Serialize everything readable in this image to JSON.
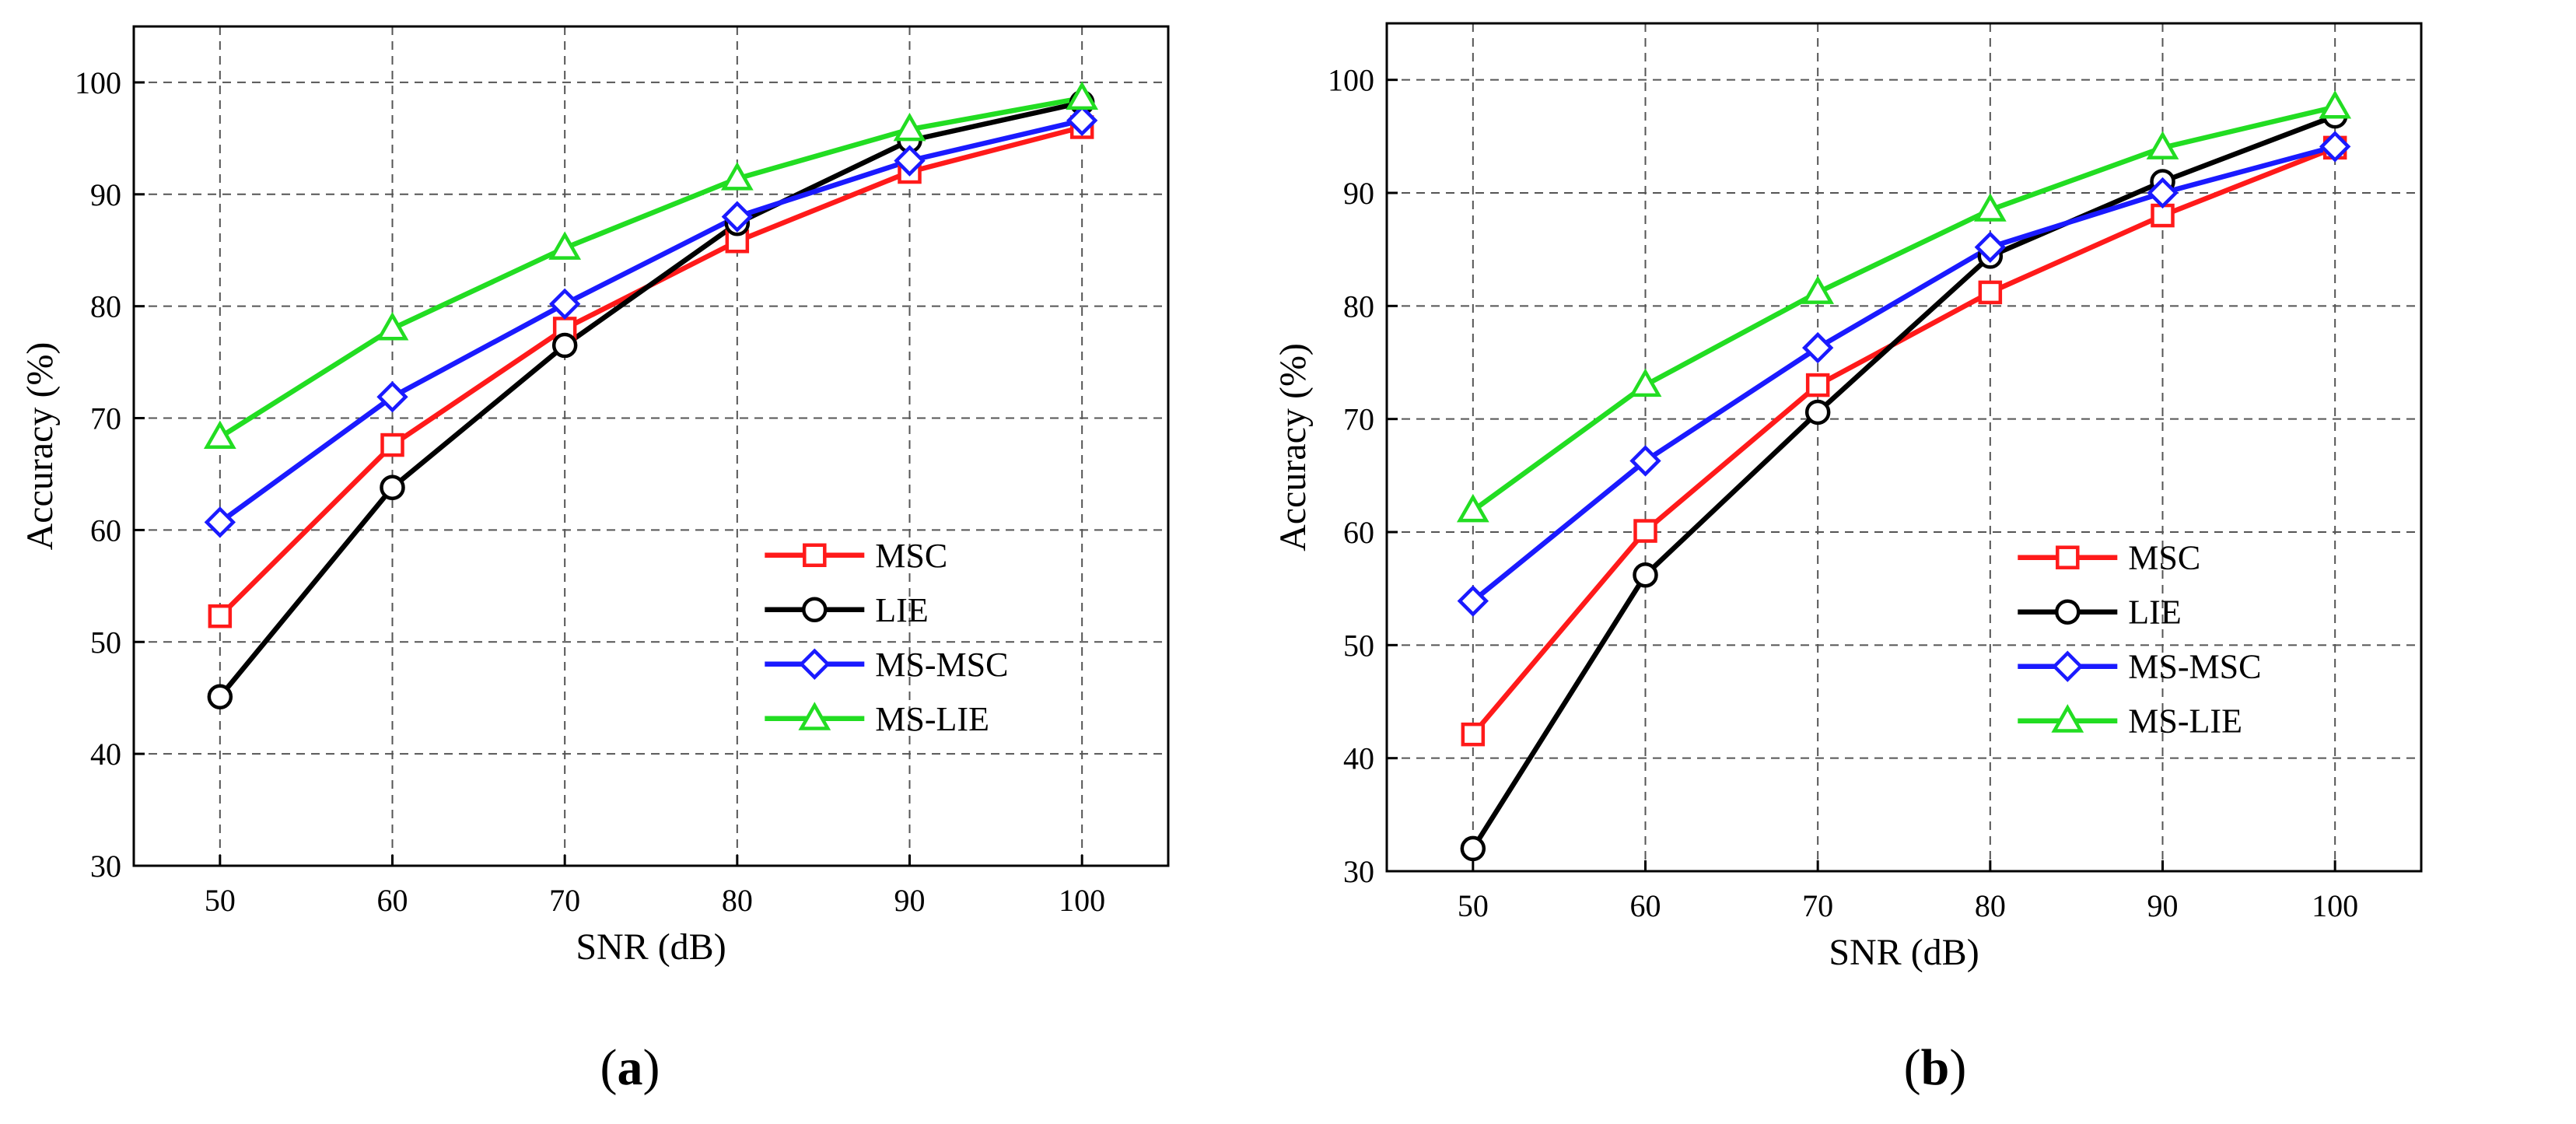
{
  "figure": {
    "panels": [
      {
        "id": "a",
        "open": "(",
        "label": "a",
        "close": ")"
      },
      {
        "id": "b",
        "open": "(",
        "label": "b",
        "close": ")"
      }
    ]
  },
  "colors": {
    "MSC": "#ff1a1a",
    "LIE": "#000000",
    "MS-MSC": "#1a1aff",
    "MS-LIE": "#22dd22"
  },
  "chart_data": [
    {
      "panel": "a",
      "type": "line",
      "title": "",
      "xlabel": "SNR (dB)",
      "ylabel": "Accuracy (%)",
      "x": [
        50,
        60,
        70,
        80,
        90,
        100
      ],
      "xlim": [
        45,
        105
      ],
      "ylim": [
        30,
        105
      ],
      "xticks": [
        50,
        60,
        70,
        80,
        90,
        100
      ],
      "yticks": [
        30,
        40,
        50,
        60,
        70,
        80,
        90,
        100
      ],
      "grid": true,
      "legend_position": "lower-right",
      "series": [
        {
          "name": "MSC",
          "marker": "square",
          "values": [
            52.3,
            67.6,
            78.0,
            85.8,
            92.0,
            96.0
          ]
        },
        {
          "name": "LIE",
          "marker": "circle",
          "values": [
            45.1,
            63.8,
            76.5,
            87.4,
            94.8,
            98.2
          ]
        },
        {
          "name": "MS-MSC",
          "marker": "diamond",
          "values": [
            60.7,
            71.9,
            80.2,
            88.0,
            93.0,
            96.6
          ]
        },
        {
          "name": "MS-LIE",
          "marker": "triangle",
          "values": [
            68.3,
            78.0,
            85.2,
            91.4,
            95.8,
            98.6
          ]
        }
      ]
    },
    {
      "panel": "b",
      "type": "line",
      "title": "",
      "xlabel": "SNR (dB)",
      "ylabel": "Accuracy (%)",
      "x": [
        50,
        60,
        70,
        80,
        90,
        100
      ],
      "xlim": [
        45,
        105
      ],
      "ylim": [
        30,
        105
      ],
      "xticks": [
        50,
        60,
        70,
        80,
        90,
        100
      ],
      "yticks": [
        30,
        40,
        50,
        60,
        70,
        80,
        90,
        100
      ],
      "grid": true,
      "legend_position": "lower-right",
      "series": [
        {
          "name": "MSC",
          "marker": "square",
          "values": [
            42.1,
            60.1,
            73.0,
            81.2,
            88.0,
            94.0
          ]
        },
        {
          "name": "LIE",
          "marker": "circle",
          "values": [
            32.0,
            56.2,
            70.6,
            84.4,
            91.0,
            96.8
          ]
        },
        {
          "name": "MS-MSC",
          "marker": "diamond",
          "values": [
            53.9,
            66.3,
            76.3,
            85.2,
            90.0,
            94.1
          ]
        },
        {
          "name": "MS-LIE",
          "marker": "triangle",
          "values": [
            61.9,
            73.0,
            81.2,
            88.5,
            94.0,
            97.6
          ]
        }
      ]
    }
  ]
}
